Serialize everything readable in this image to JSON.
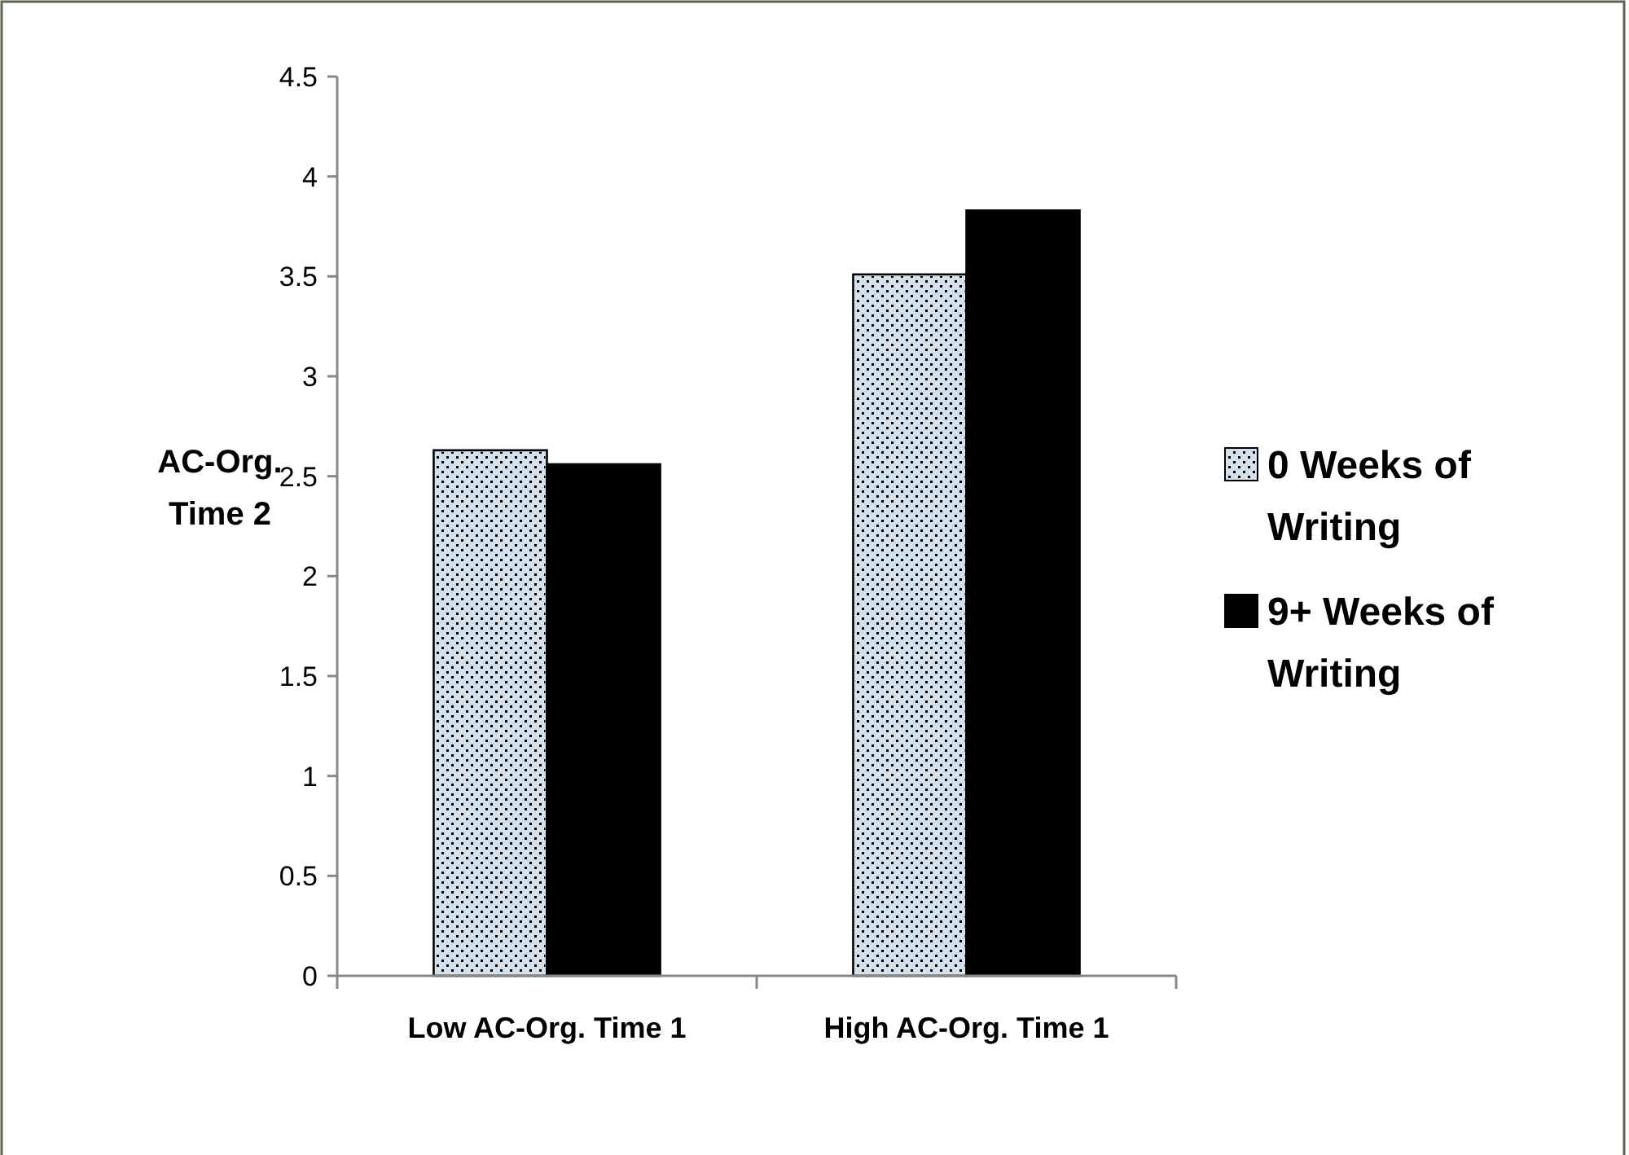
{
  "chart_data": {
    "type": "bar",
    "ylabel": "AC-Org. Time 2",
    "categories": [
      "Low AC-Org. Time 1",
      "High AC-Org. Time 1"
    ],
    "series": [
      {
        "name": "0 Weeks of Writing",
        "color": "#d3e1ee",
        "values": [
          2.63,
          3.51
        ]
      },
      {
        "name": "9+ Weeks of Writing",
        "color": "#000000",
        "values": [
          2.56,
          3.83
        ]
      }
    ],
    "ylim": [
      0,
      4.5
    ],
    "yticks": [
      0,
      0.5,
      1,
      1.5,
      2,
      2.5,
      3,
      3.5,
      4,
      4.5
    ],
    "grid": false,
    "legend": "right"
  }
}
